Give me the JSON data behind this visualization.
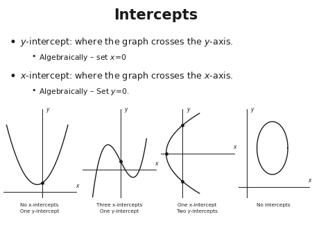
{
  "title": "Intercepts",
  "bullet1_italic": "y",
  "bullet1_rest": "-intercept: where the graph crosses the ",
  "bullet1_italic2": "y",
  "bullet1_end": "-axis.",
  "bullet1_sub": "Algebraically – set ",
  "bullet1_sub_italic": "x",
  "bullet1_sub_end": "=0",
  "bullet2_italic": "x",
  "bullet2_rest": "-intercept: where the graph crosses the ",
  "bullet2_italic2": "x",
  "bullet2_end": "-axis.",
  "bullet2_sub": "Algebraically – Set ",
  "bullet2_sub_italic": "y",
  "bullet2_sub_end": "=0.",
  "graph_labels": [
    "No x-intercepts\nOne y-intercept",
    "Three x-intercepts\nOne y-intercept",
    "One x-intercept\nTwo y-intercepts",
    "No intercepts"
  ],
  "bg_color": "#ffffff",
  "text_color": "#1a1a1a",
  "curve_color": "#1a1a1a"
}
